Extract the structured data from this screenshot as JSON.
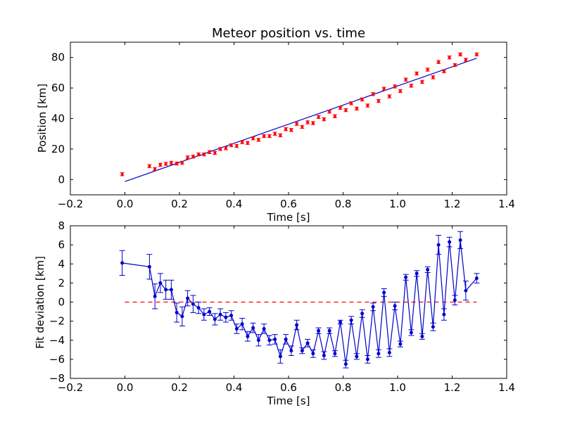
{
  "figure": {
    "background": "#ffffff"
  },
  "chart_data": [
    {
      "type": "scatter",
      "title": "Meteor position vs. time",
      "xlabel": "Time [s]",
      "ylabel": "Position [km]",
      "xlim": [
        -0.2,
        1.4
      ],
      "ylim": [
        -10,
        90
      ],
      "xticks": [
        -0.2,
        0.0,
        0.2,
        0.4,
        0.6,
        0.8,
        1.0,
        1.2,
        1.4
      ],
      "xtick_labels": [
        "−0.2",
        "0.0",
        "0.2",
        "0.4",
        "0.6",
        "0.8",
        "1.0",
        "1.2",
        "1.4"
      ],
      "yticks": [
        0,
        20,
        40,
        60,
        80
      ],
      "ytick_labels": [
        "0",
        "20",
        "40",
        "60",
        "80"
      ],
      "grid": false,
      "marker_color": "#ff0000",
      "line_color": "#0000cc",
      "points": {
        "x": [
          -0.01,
          0.09,
          0.11,
          0.13,
          0.15,
          0.17,
          0.19,
          0.21,
          0.23,
          0.25,
          0.27,
          0.29,
          0.31,
          0.33,
          0.35,
          0.37,
          0.39,
          0.41,
          0.43,
          0.45,
          0.47,
          0.49,
          0.51,
          0.53,
          0.55,
          0.57,
          0.59,
          0.61,
          0.63,
          0.65,
          0.67,
          0.69,
          0.71,
          0.73,
          0.75,
          0.77,
          0.79,
          0.81,
          0.83,
          0.85,
          0.87,
          0.89,
          0.91,
          0.93,
          0.95,
          0.97,
          0.99,
          1.01,
          1.03,
          1.05,
          1.07,
          1.09,
          1.11,
          1.13,
          1.15,
          1.17,
          1.19,
          1.21,
          1.23,
          1.25,
          1.29
        ],
        "y": [
          3.5,
          8.8,
          6.9,
          9.7,
          10.3,
          11.0,
          10.5,
          11.0,
          14.5,
          15.0,
          16.5,
          16.5,
          18.0,
          17.5,
          20.0,
          20.5,
          22.5,
          22.0,
          24.5,
          24.0,
          27.0,
          26.0,
          28.5,
          28.5,
          30.0,
          29.0,
          33.0,
          32.5,
          36.5,
          34.5,
          37.5,
          37.0,
          41.0,
          39.5,
          44.5,
          41.5,
          47.0,
          45.5,
          50.0,
          46.5,
          52.5,
          48.5,
          56.0,
          51.5,
          59.5,
          54.5,
          61.0,
          58.0,
          65.5,
          61.5,
          69.5,
          64.0,
          72.0,
          67.0,
          77.0,
          71.0,
          80.0,
          75.0,
          82.0,
          78.5,
          82.0
        ],
        "yerr": 1.0
      },
      "fit_line": {
        "x": [
          0.0,
          1.29
        ],
        "y": [
          -1.3,
          79.5
        ]
      }
    },
    {
      "type": "line",
      "title": "",
      "xlabel": "Time [s]",
      "ylabel": "Fit deviation [km]",
      "xlim": [
        -0.2,
        1.4
      ],
      "ylim": [
        -8,
        8
      ],
      "xticks": [
        -0.2,
        0.0,
        0.2,
        0.4,
        0.6,
        0.8,
        1.0,
        1.2,
        1.4
      ],
      "xtick_labels": [
        "−0.2",
        "0.0",
        "0.2",
        "0.4",
        "0.6",
        "0.8",
        "1.0",
        "1.2",
        "1.4"
      ],
      "yticks": [
        -8,
        -6,
        -4,
        -2,
        0,
        2,
        4,
        6,
        8
      ],
      "ytick_labels": [
        "−8",
        "−6",
        "−4",
        "−2",
        "0",
        "2",
        "4",
        "6",
        "8"
      ],
      "grid": false,
      "series_color": "#0000cc",
      "reference_color": "#ff0000",
      "series": {
        "x": [
          -0.01,
          0.09,
          0.11,
          0.13,
          0.15,
          0.17,
          0.19,
          0.21,
          0.23,
          0.25,
          0.27,
          0.29,
          0.31,
          0.33,
          0.35,
          0.37,
          0.39,
          0.41,
          0.43,
          0.45,
          0.47,
          0.49,
          0.51,
          0.53,
          0.55,
          0.57,
          0.59,
          0.61,
          0.63,
          0.65,
          0.67,
          0.69,
          0.71,
          0.73,
          0.75,
          0.77,
          0.79,
          0.81,
          0.83,
          0.85,
          0.87,
          0.89,
          0.91,
          0.93,
          0.95,
          0.97,
          0.99,
          1.01,
          1.03,
          1.05,
          1.07,
          1.09,
          1.11,
          1.13,
          1.15,
          1.17,
          1.19,
          1.21,
          1.23,
          1.25,
          1.29
        ],
        "y": [
          4.1,
          3.7,
          0.6,
          2.0,
          1.3,
          1.3,
          -1.1,
          -1.5,
          0.4,
          -0.2,
          -0.6,
          -1.3,
          -1.0,
          -1.8,
          -1.3,
          -1.6,
          -1.4,
          -2.8,
          -2.3,
          -3.6,
          -2.7,
          -4.0,
          -2.8,
          -4.0,
          -3.9,
          -5.7,
          -3.9,
          -5.1,
          -2.4,
          -5.1,
          -4.3,
          -5.4,
          -3.0,
          -5.6,
          -3.0,
          -5.4,
          -2.1,
          -6.5,
          -1.9,
          -5.7,
          -1.2,
          -6.0,
          -0.5,
          -5.4,
          1.0,
          -5.3,
          -0.4,
          -4.4,
          2.6,
          -3.2,
          3.0,
          -3.6,
          3.4,
          -2.6,
          6.0,
          -1.3,
          6.3,
          0.2,
          6.5,
          1.2,
          2.5
        ],
        "yerr": [
          1.3,
          1.3,
          1.3,
          1.0,
          1.0,
          1.0,
          1.0,
          1.0,
          0.8,
          0.9,
          0.6,
          0.6,
          0.4,
          0.6,
          0.6,
          0.5,
          0.5,
          0.5,
          0.6,
          0.5,
          0.5,
          0.6,
          0.5,
          0.5,
          0.5,
          0.7,
          0.5,
          0.5,
          0.5,
          0.3,
          0.4,
          0.4,
          0.3,
          0.4,
          0.3,
          0.3,
          0.2,
          0.4,
          0.4,
          0.3,
          0.4,
          0.4,
          0.4,
          0.4,
          0.4,
          0.4,
          0.4,
          0.3,
          0.3,
          0.3,
          0.3,
          0.3,
          0.3,
          0.4,
          1.0,
          0.6,
          0.5,
          0.5,
          0.9,
          1.0,
          0.5
        ]
      },
      "reference_line": {
        "x": [
          0.0,
          1.29
        ],
        "y": [
          0.0,
          0.0
        ]
      }
    }
  ]
}
